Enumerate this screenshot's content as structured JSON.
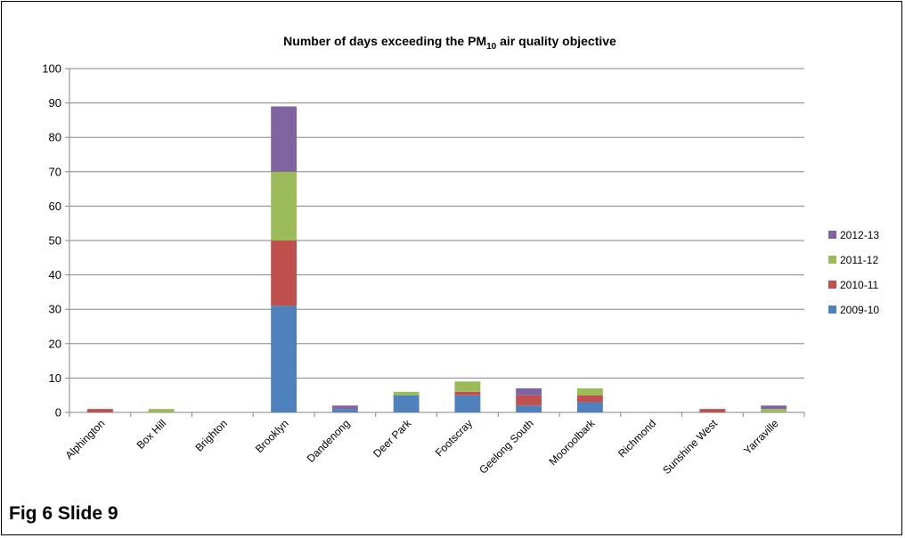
{
  "caption": "Fig 6 Slide 9",
  "chart_data": {
    "type": "bar",
    "stacked": true,
    "title": {
      "prefix": "Number of days exceeding the PM",
      "subscript": "10",
      "suffix": " air quality objective"
    },
    "xlabel": "",
    "ylabel": "",
    "ylim": [
      0,
      100
    ],
    "yticks": [
      0,
      10,
      20,
      30,
      40,
      50,
      60,
      70,
      80,
      90,
      100
    ],
    "grid": true,
    "legend_position": "right",
    "categories": [
      "Alphington",
      "Box Hill",
      "Brighton",
      "Brooklyn",
      "Dandenong",
      "Deer Park",
      "Footscray",
      "Geelong South",
      "Mooroolbark",
      "Richmond",
      "Sunshine West",
      "Yarraville"
    ],
    "series": [
      {
        "name": "2009-10",
        "color": "#4F81BD",
        "values": [
          0,
          0,
          0,
          31,
          1,
          5,
          5,
          2,
          3,
          0,
          0,
          0
        ]
      },
      {
        "name": "2010-11",
        "color": "#C0504D",
        "values": [
          1,
          0,
          0,
          19,
          0,
          0,
          1,
          3,
          2,
          0,
          1,
          0
        ]
      },
      {
        "name": "2011-12",
        "color": "#9BBB59",
        "values": [
          0,
          1,
          0,
          20,
          0,
          1,
          3,
          0,
          2,
          0,
          0,
          1
        ]
      },
      {
        "name": "2012-13",
        "color": "#8064A2",
        "values": [
          0,
          0,
          0,
          19,
          1,
          0,
          0,
          2,
          0,
          0,
          0,
          1
        ]
      }
    ]
  }
}
